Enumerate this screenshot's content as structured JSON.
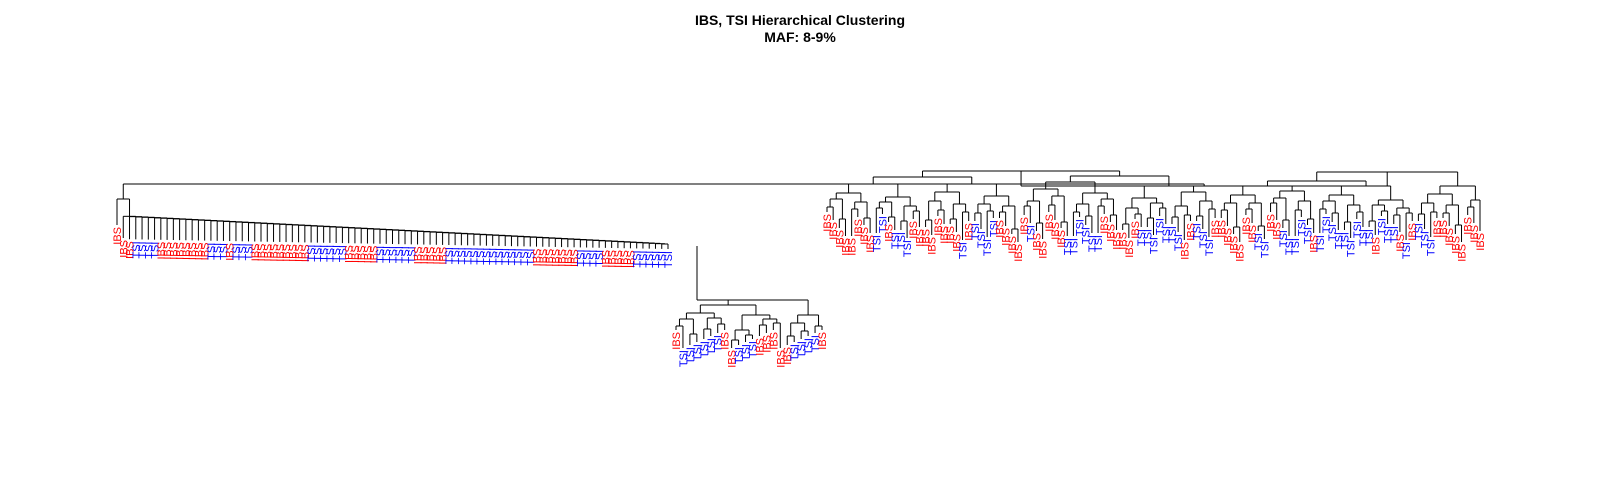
{
  "chart_data": {
    "type": "dendrogram",
    "title": "IBS, TSI Hierarchical Clustering",
    "subtitle": "MAF: 8-9%",
    "colors": {
      "IBS": "#ff0000",
      "TSI": "#0000ff",
      "tree": "#000000"
    },
    "groups": [
      {
        "name": "left-ladder",
        "leaves": "IIITTTTIIIIIIIITTTITTTIIIIIIIIITTTTTTIIIIITTTTTTIIIIITTTTTTTTTTTTTTIIIIIIITTTTIIIIITTTTTT"
      },
      {
        "name": "middle",
        "leaves": "ITTTTTTIITTTIIIIITTTTI"
      },
      {
        "name": "right",
        "leaves": "IIIIIIIITTITTTIIIIIIIITITTTTIIIIITIIIIITTTTTTIIIIIITTTTTTTIITTTIIIIIIITTIITTTTTITTTTTTTTTITTTITITTTIIIIIIII"
      }
    ]
  }
}
